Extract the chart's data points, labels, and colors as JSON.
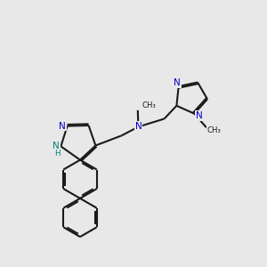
{
  "bg_color": "#e8e8e8",
  "bond_color": "#1a1a1a",
  "N_color": "#0000cc",
  "NH_color": "#008080",
  "lw": 1.5,
  "fs": 7.5,
  "dbo": 0.055,
  "xlim": [
    0,
    10
  ],
  "ylim": [
    0,
    10
  ]
}
